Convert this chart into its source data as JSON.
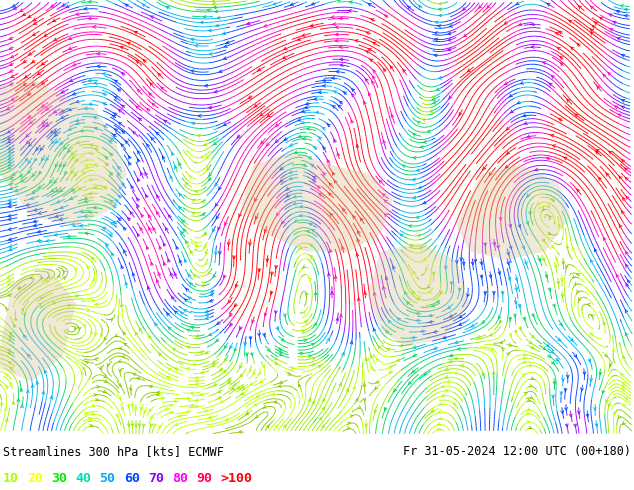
{
  "title_left": "Streamlines 300 hPa [kts] ECMWF",
  "title_right": "Fr 31-05-2024 12:00 UTC (00+180)",
  "legend_labels": [
    "10",
    "20",
    "30",
    "40",
    "50",
    "60",
    "70",
    "80",
    "90",
    ">100"
  ],
  "legend_colors": [
    "#aaff00",
    "#ffff00",
    "#00ee00",
    "#00ddaa",
    "#00aaff",
    "#0044ff",
    "#8800ff",
    "#ff00ff",
    "#ff0055",
    "#ff0000"
  ],
  "bg_color": "#aed4e8",
  "fig_width": 6.34,
  "fig_height": 4.9,
  "dpi": 100,
  "label_fontsize": 8.5,
  "legend_fontsize": 9.5
}
